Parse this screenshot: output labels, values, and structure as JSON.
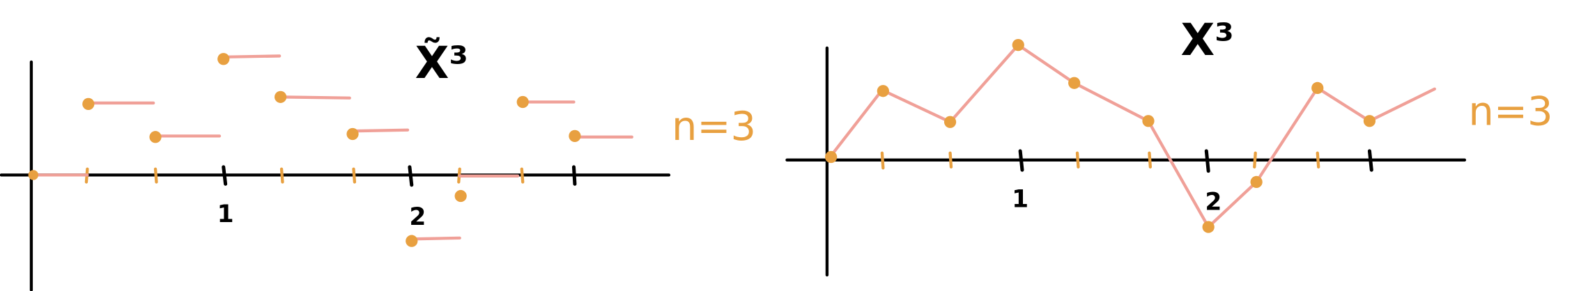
{
  "left": {
    "title": "X̃³",
    "label": "n=3",
    "tick_labels": [
      "1",
      "2"
    ]
  },
  "right": {
    "title": "X³",
    "label": "n=3",
    "tick_labels": [
      "1",
      "2"
    ]
  }
}
